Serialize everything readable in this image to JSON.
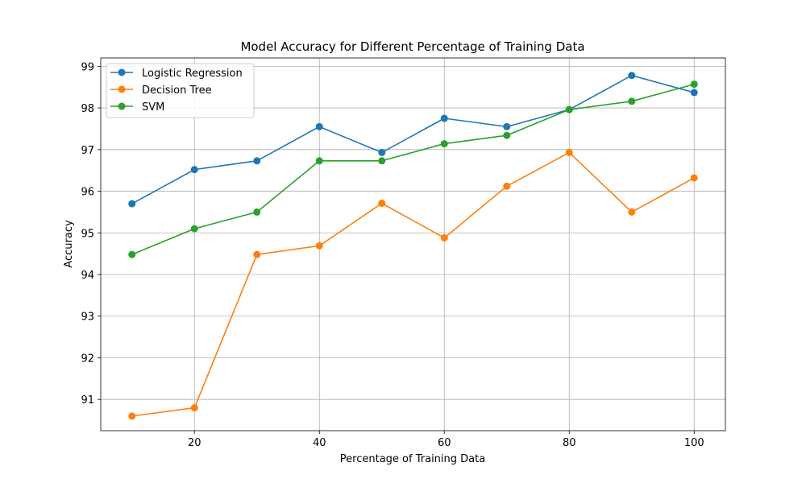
{
  "chart_data": {
    "type": "line",
    "title": "Model Accuracy for Different Percentage of Training Data",
    "xlabel": "Percentage of Training Data",
    "ylabel": "Accuracy",
    "x": [
      10,
      20,
      30,
      40,
      50,
      60,
      70,
      80,
      90,
      100
    ],
    "xlim": [
      5,
      105
    ],
    "ylim": [
      90.25,
      99.2
    ],
    "xticks": [
      20,
      40,
      60,
      80,
      100
    ],
    "yticks": [
      91,
      92,
      93,
      94,
      95,
      96,
      97,
      98,
      99
    ],
    "grid": true,
    "legend_position": "top-left",
    "series": [
      {
        "name": "Logistic Regression",
        "color": "#1f77b4",
        "values": [
          95.7,
          96.52,
          96.73,
          97.55,
          96.93,
          97.75,
          97.55,
          97.96,
          98.78,
          98.37
        ]
      },
      {
        "name": "Decision Tree",
        "color": "#ff7f0e",
        "values": [
          90.6,
          90.8,
          94.48,
          94.69,
          95.71,
          94.88,
          96.12,
          96.93,
          95.5,
          96.32
        ]
      },
      {
        "name": "SVM",
        "color": "#2ca02c",
        "values": [
          94.48,
          95.1,
          95.5,
          96.73,
          96.73,
          97.14,
          97.34,
          97.96,
          98.16,
          98.57
        ]
      }
    ]
  }
}
